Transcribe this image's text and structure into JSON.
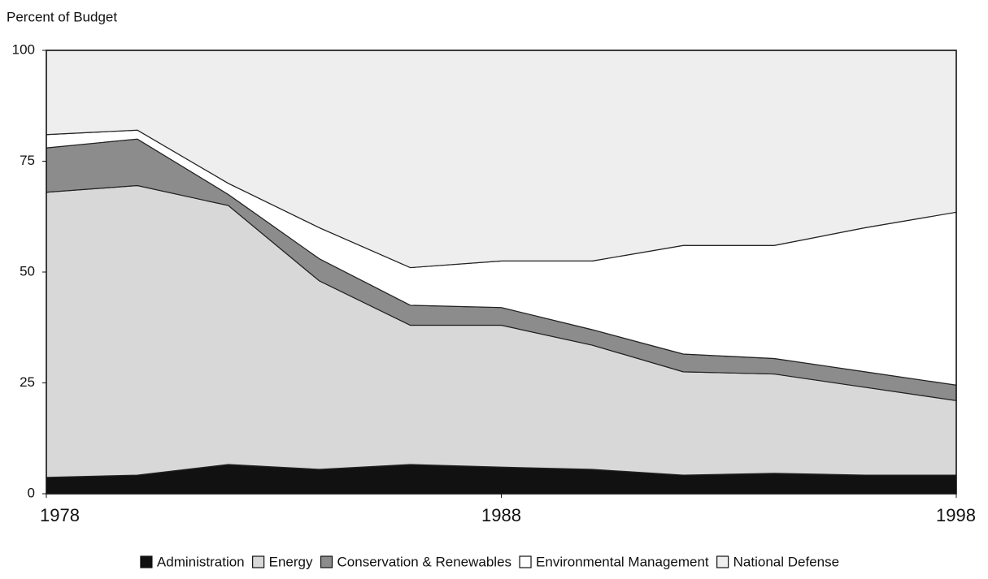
{
  "chart_data": {
    "type": "stacked_area",
    "ylabel": "Percent of Budget",
    "x": [
      1978,
      1980,
      1982,
      1984,
      1986,
      1988,
      1990,
      1992,
      1994,
      1996,
      1998
    ],
    "xlim": [
      1978,
      1998
    ],
    "xticks": [
      1978,
      1988,
      1998
    ],
    "ylim": [
      0,
      100
    ],
    "yticks": [
      0,
      25,
      50,
      75,
      100
    ],
    "legend": "bottom",
    "series": [
      {
        "name": "Administration",
        "color": "#111111",
        "values": [
          3.7,
          4.2,
          6.6,
          5.5,
          6.6,
          6,
          5.5,
          4.2,
          4.6,
          4.2,
          4.2
        ]
      },
      {
        "name": "Energy",
        "color": "#d8d8d8",
        "values": [
          64.3,
          65.3,
          58.4,
          42.5,
          31.4,
          32,
          28,
          23.3,
          22.4,
          19.8,
          16.8
        ]
      },
      {
        "name": "Conservation & Renewables",
        "color": "#8c8c8c",
        "values": [
          10,
          10.5,
          2.5,
          5,
          4.5,
          4,
          3.5,
          4,
          3.5,
          3.5,
          3.5
        ]
      },
      {
        "name": "Environmental Management",
        "color": "#ffffff",
        "values": [
          3,
          2,
          2.5,
          7,
          8.5,
          10.5,
          15.5,
          24.5,
          25.5,
          32.5,
          39
        ]
      },
      {
        "name": "National Defense",
        "color": "#eeeeee",
        "values": [
          19,
          18,
          30,
          40,
          49,
          47.5,
          47.5,
          44,
          44,
          40,
          36.5
        ]
      }
    ]
  }
}
